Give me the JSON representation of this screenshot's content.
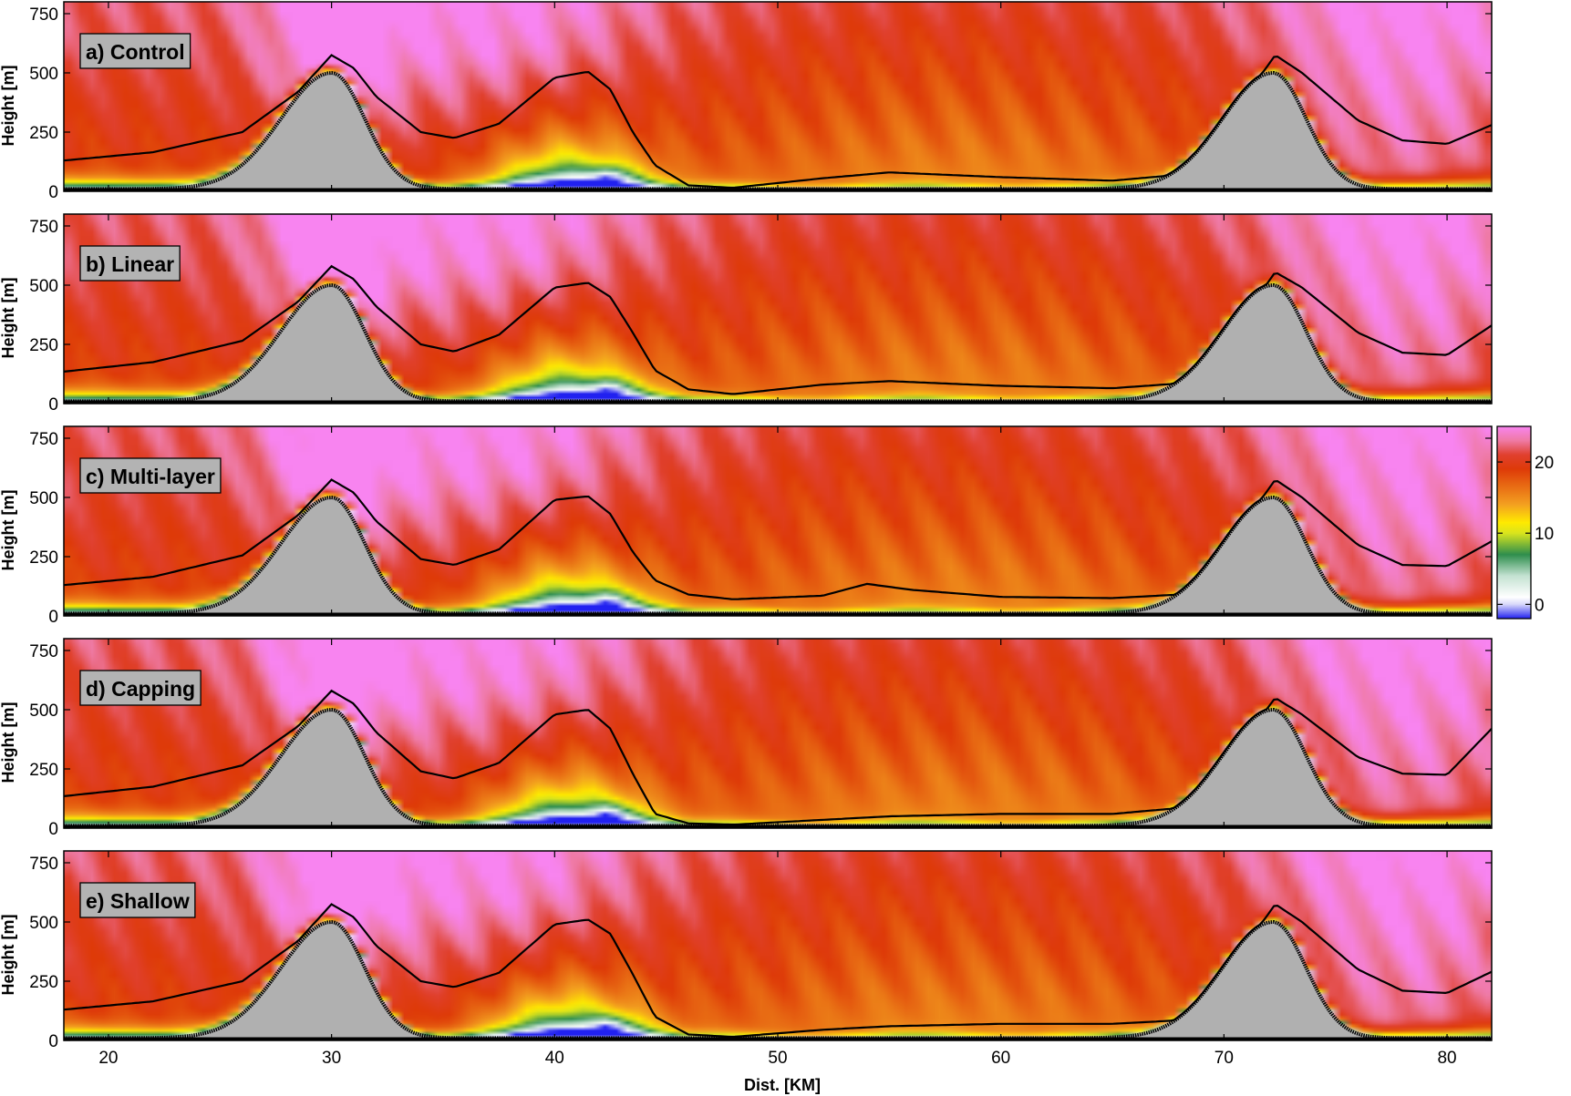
{
  "chart_data": {
    "type": "heatmap",
    "x_label": "Dist. [KM]",
    "y_label": "Height [m]",
    "xlim": [
      18,
      82
    ],
    "ylim": [
      0,
      800
    ],
    "x_ticks": [
      20,
      30,
      40,
      50,
      60,
      70,
      80
    ],
    "y_ticks": [
      0,
      250,
      500,
      750
    ],
    "colorbar": {
      "range": [
        -2,
        25
      ],
      "tick_values": [
        0,
        10,
        20
      ],
      "tick_labels": [
        "0",
        "10",
        "20"
      ],
      "stops": [
        {
          "v": -2,
          "color": "#2121f0"
        },
        {
          "v": 0,
          "color": "#d8d8fa"
        },
        {
          "v": 1,
          "color": "#ffffff"
        },
        {
          "v": 4,
          "color": "#c4e2d2"
        },
        {
          "v": 7,
          "color": "#2e8e4c"
        },
        {
          "v": 10,
          "color": "#d8e41e"
        },
        {
          "v": 11.5,
          "color": "#ffea00"
        },
        {
          "v": 14,
          "color": "#f3a020"
        },
        {
          "v": 19,
          "color": "#de3a08"
        },
        {
          "v": 21,
          "color": "#e0402e"
        },
        {
          "v": 23,
          "color": "#ef7aa4"
        },
        {
          "v": 25,
          "color": "#f884f0"
        }
      ]
    },
    "terrain": {
      "baseline_height": 10,
      "ridges": [
        {
          "center": 30,
          "peak": 500
        },
        {
          "center": 72.2,
          "peak": 500
        }
      ]
    },
    "panels": [
      {
        "label": "a) Control",
        "boundary_line": [
          [
            18,
            130
          ],
          [
            22,
            165
          ],
          [
            26,
            250
          ],
          [
            28.5,
            420
          ],
          [
            30,
            575
          ],
          [
            31,
            520
          ],
          [
            32,
            400
          ],
          [
            34,
            250
          ],
          [
            35.5,
            225
          ],
          [
            37.5,
            285
          ],
          [
            40,
            480
          ],
          [
            41.5,
            505
          ],
          [
            42.5,
            430
          ],
          [
            43.5,
            250
          ],
          [
            44.5,
            110
          ],
          [
            46,
            25
          ],
          [
            48,
            15
          ],
          [
            52,
            55
          ],
          [
            55,
            80
          ],
          [
            60,
            60
          ],
          [
            65,
            45
          ],
          [
            68,
            70
          ],
          [
            70,
            160
          ],
          [
            71.5,
            470
          ],
          [
            72.3,
            575
          ],
          [
            73.5,
            500
          ],
          [
            76,
            300
          ],
          [
            78,
            215
          ],
          [
            80,
            200
          ],
          [
            82,
            280
          ]
        ]
      },
      {
        "label": "b) Linear",
        "boundary_line": [
          [
            18,
            135
          ],
          [
            22,
            175
          ],
          [
            26,
            265
          ],
          [
            28.5,
            430
          ],
          [
            30,
            580
          ],
          [
            31,
            525
          ],
          [
            32,
            410
          ],
          [
            34,
            250
          ],
          [
            35.5,
            220
          ],
          [
            37.5,
            290
          ],
          [
            40,
            490
          ],
          [
            41.5,
            510
          ],
          [
            42.5,
            450
          ],
          [
            43.5,
            300
          ],
          [
            44.5,
            140
          ],
          [
            46,
            60
          ],
          [
            48,
            40
          ],
          [
            52,
            80
          ],
          [
            55,
            95
          ],
          [
            60,
            75
          ],
          [
            65,
            65
          ],
          [
            68,
            85
          ],
          [
            70,
            160
          ],
          [
            71.5,
            450
          ],
          [
            72.3,
            555
          ],
          [
            73.5,
            490
          ],
          [
            76,
            300
          ],
          [
            78,
            215
          ],
          [
            80,
            205
          ],
          [
            82,
            330
          ]
        ]
      },
      {
        "label": "c) Multi-layer",
        "boundary_line": [
          [
            18,
            130
          ],
          [
            22,
            165
          ],
          [
            26,
            255
          ],
          [
            28.5,
            425
          ],
          [
            30,
            575
          ],
          [
            31,
            520
          ],
          [
            32,
            400
          ],
          [
            34,
            240
          ],
          [
            35.5,
            215
          ],
          [
            37.5,
            280
          ],
          [
            40,
            490
          ],
          [
            41.5,
            505
          ],
          [
            42.5,
            430
          ],
          [
            43.5,
            270
          ],
          [
            44.5,
            150
          ],
          [
            46,
            90
          ],
          [
            48,
            70
          ],
          [
            52,
            85
          ],
          [
            54,
            135
          ],
          [
            56,
            110
          ],
          [
            60,
            80
          ],
          [
            65,
            75
          ],
          [
            68,
            90
          ],
          [
            70,
            175
          ],
          [
            71.5,
            470
          ],
          [
            72.3,
            575
          ],
          [
            73.5,
            500
          ],
          [
            76,
            300
          ],
          [
            78,
            215
          ],
          [
            80,
            210
          ],
          [
            82,
            315
          ]
        ]
      },
      {
        "label": "d) Capping",
        "boundary_line": [
          [
            18,
            135
          ],
          [
            22,
            175
          ],
          [
            26,
            265
          ],
          [
            28.5,
            430
          ],
          [
            30,
            580
          ],
          [
            31,
            525
          ],
          [
            32,
            405
          ],
          [
            34,
            240
          ],
          [
            35.5,
            210
          ],
          [
            37.5,
            275
          ],
          [
            40,
            480
          ],
          [
            41.5,
            500
          ],
          [
            42.5,
            420
          ],
          [
            43.5,
            230
          ],
          [
            44.5,
            60
          ],
          [
            46,
            20
          ],
          [
            48,
            15
          ],
          [
            52,
            35
          ],
          [
            55,
            50
          ],
          [
            60,
            60
          ],
          [
            65,
            60
          ],
          [
            68,
            85
          ],
          [
            70,
            160
          ],
          [
            71.5,
            450
          ],
          [
            72.3,
            550
          ],
          [
            73.5,
            480
          ],
          [
            76,
            300
          ],
          [
            78,
            230
          ],
          [
            80,
            225
          ],
          [
            82,
            420
          ]
        ]
      },
      {
        "label": "e) Shallow",
        "boundary_line": [
          [
            18,
            130
          ],
          [
            22,
            165
          ],
          [
            26,
            250
          ],
          [
            28.5,
            420
          ],
          [
            30,
            575
          ],
          [
            31,
            520
          ],
          [
            32,
            400
          ],
          [
            34,
            250
          ],
          [
            35.5,
            225
          ],
          [
            37.5,
            285
          ],
          [
            40,
            490
          ],
          [
            41.5,
            510
          ],
          [
            42.5,
            450
          ],
          [
            43.5,
            280
          ],
          [
            44.5,
            100
          ],
          [
            46,
            25
          ],
          [
            48,
            15
          ],
          [
            52,
            45
          ],
          [
            55,
            60
          ],
          [
            60,
            70
          ],
          [
            65,
            70
          ],
          [
            68,
            85
          ],
          [
            70,
            170
          ],
          [
            71.5,
            470
          ],
          [
            72.3,
            575
          ],
          [
            73.5,
            500
          ],
          [
            76,
            300
          ],
          [
            78,
            210
          ],
          [
            80,
            200
          ],
          [
            82,
            290
          ]
        ]
      }
    ]
  }
}
